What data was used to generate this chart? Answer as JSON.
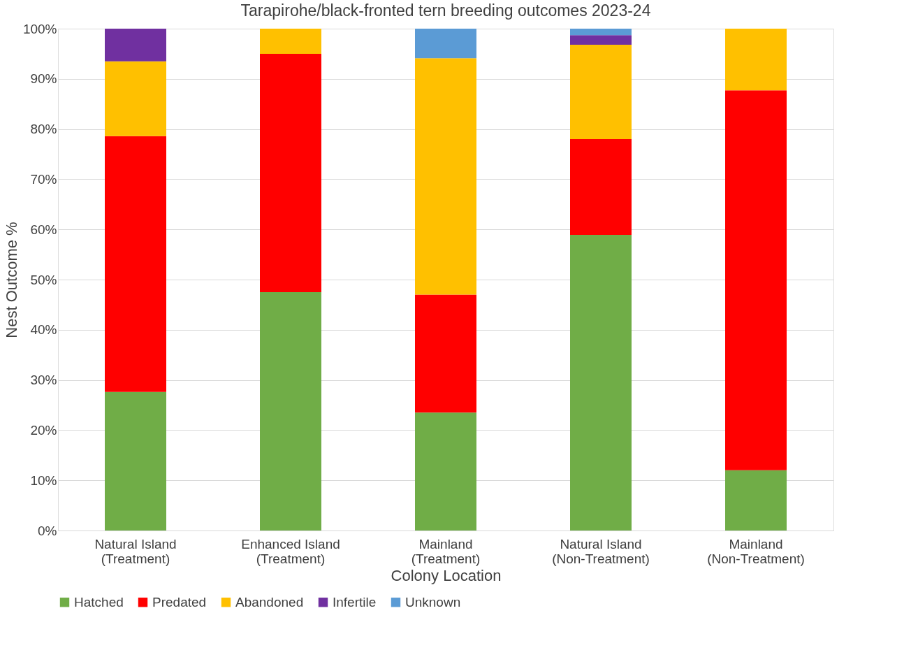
{
  "chart_data": {
    "type": "bar",
    "title": "Tarapirohe/black-fronted tern breeding outcomes 2023-24",
    "xlabel": "Colony Location",
    "ylabel": "Nest Outcome %",
    "categories": [
      "Natural Island (Treatment)",
      "Enhanced Island (Treatment)",
      "Mainland (Treatment)",
      "Natural Island (Non-Treatment)",
      "Mainland (Non-Treatment)"
    ],
    "stacked": true,
    "series": [
      {
        "name": "Hatched",
        "color": "#70ad47",
        "values": [
          27.6,
          47.5,
          23.5,
          58.9,
          12.0
        ]
      },
      {
        "name": "Predated",
        "color": "#ff0000",
        "values": [
          51.0,
          47.5,
          23.5,
          19.1,
          75.7
        ]
      },
      {
        "name": "Abandoned",
        "color": "#ffc000",
        "values": [
          14.9,
          5.0,
          47.1,
          18.8,
          12.3
        ]
      },
      {
        "name": "Infertile",
        "color": "#7030a0",
        "values": [
          6.5,
          0,
          0,
          1.9,
          0
        ]
      },
      {
        "name": "Unknown",
        "color": "#5b9bd5",
        "values": [
          0,
          0,
          5.9,
          1.3,
          0
        ]
      }
    ],
    "ylim": [
      0,
      100
    ],
    "yticks": [
      {
        "value": 0,
        "label": "0%"
      },
      {
        "value": 10,
        "label": "10%"
      },
      {
        "value": 20,
        "label": "20%"
      },
      {
        "value": 30,
        "label": "30%"
      },
      {
        "value": 40,
        "label": "40%"
      },
      {
        "value": 50,
        "label": "50%"
      },
      {
        "value": 60,
        "label": "60%"
      },
      {
        "value": 70,
        "label": "70%"
      },
      {
        "value": 80,
        "label": "80%"
      },
      {
        "value": 90,
        "label": "90%"
      },
      {
        "value": 100,
        "label": "100%"
      }
    ],
    "grid": "y",
    "legend": "bottom"
  }
}
